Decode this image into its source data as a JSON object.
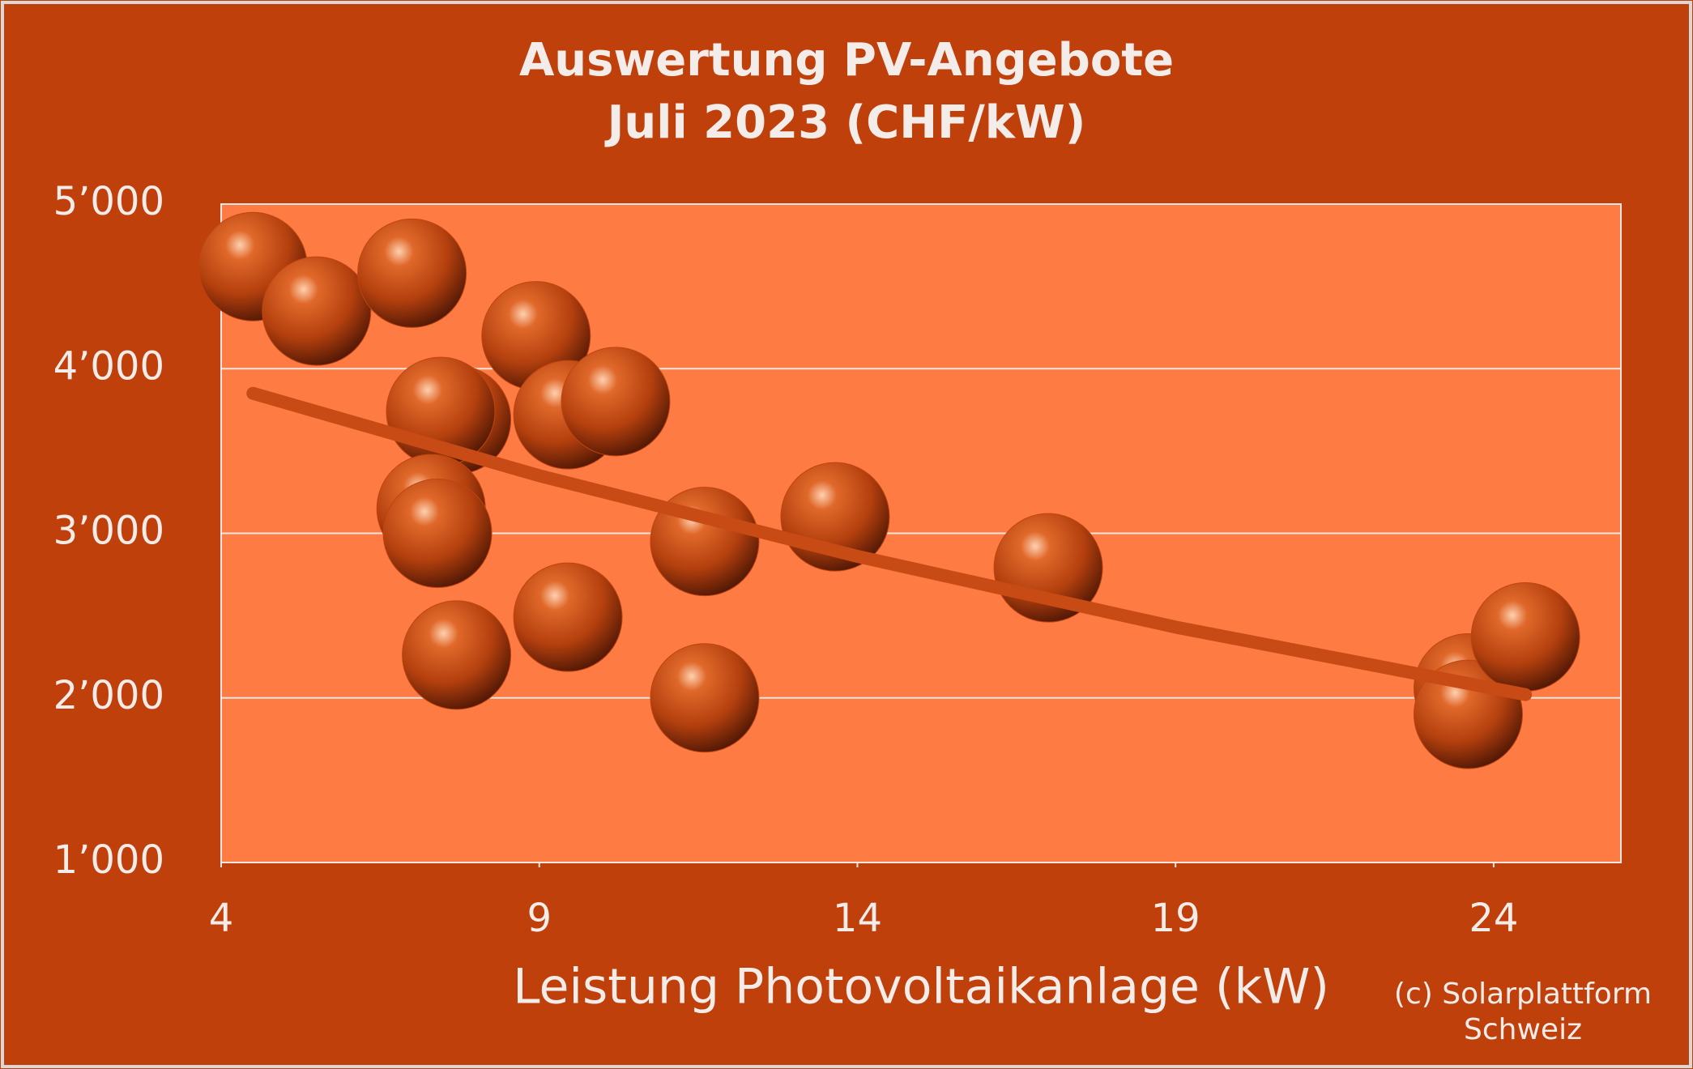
{
  "chart_data": {
    "type": "scatter",
    "title": [
      "Auswertung PV-Angebote",
      "Juli 2023 (CHF/kW)"
    ],
    "x_label": "Leistung Photovoltaikanlage (kW)",
    "credit": [
      "(c) Solarplattform",
      "Schweiz"
    ],
    "x": [
      4.5,
      5.5,
      7.0,
      8.95,
      7.7,
      7.45,
      9.45,
      10.2,
      7.3,
      7.4,
      7.7,
      9.45,
      11.6,
      11.6,
      13.65,
      17.0,
      23.6,
      23.6,
      24.5
    ],
    "values": [
      4620,
      4350,
      4580,
      4200,
      3690,
      3740,
      3720,
      3800,
      3150,
      3000,
      2260,
      2490,
      2950,
      2000,
      3100,
      2790,
      2060,
      1900,
      2370
    ],
    "color": "#c0440e",
    "trendline": {
      "x": [
        4.5,
        9,
        14,
        19,
        24.5
      ],
      "values": [
        3850,
        3350,
        2860,
        2430,
        2020
      ],
      "color": "#c84a14"
    },
    "xlim": [
      4,
      26
    ],
    "xticks": [
      4,
      9,
      14,
      19,
      24
    ],
    "ylim": [
      1000,
      5000
    ],
    "yticks": [
      {
        "value": 1000,
        "label": "1’000"
      },
      {
        "value": 2000,
        "label": "2’000"
      },
      {
        "value": 3000,
        "label": "3’000"
      },
      {
        "value": 4000,
        "label": "4’000"
      },
      {
        "value": 5000,
        "label": "5’000"
      }
    ],
    "grid": true
  }
}
